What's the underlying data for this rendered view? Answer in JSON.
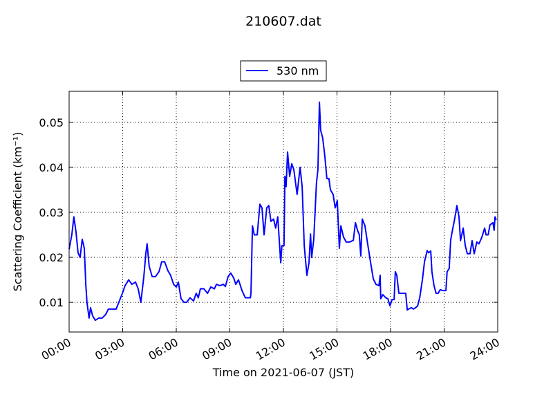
{
  "chart_data": {
    "type": "line",
    "title": "210607.dat",
    "xlabel": "Time on 2021-06-07 (JST)",
    "ylabel": "Scattering Coefficient (km⁻¹)",
    "x": [
      "00:00",
      "00:09",
      "00:16",
      "00:23",
      "00:30",
      "00:37",
      "00:44",
      "00:51",
      "00:56",
      "01:00",
      "01:07",
      "01:12",
      "01:19",
      "01:28",
      "01:40",
      "01:51",
      "02:03",
      "02:12",
      "02:24",
      "02:38",
      "02:47",
      "02:59",
      "03:08",
      "03:20",
      "03:31",
      "03:43",
      "03:52",
      "04:01",
      "04:11",
      "04:18",
      "04:22",
      "04:29",
      "04:39",
      "04:50",
      "05:02",
      "05:11",
      "05:21",
      "05:32",
      "05:41",
      "05:51",
      "06:00",
      "06:07",
      "06:16",
      "06:26",
      "06:35",
      "06:46",
      "06:58",
      "07:07",
      "07:14",
      "07:21",
      "07:33",
      "07:45",
      "07:56",
      "08:08",
      "08:15",
      "08:26",
      "08:38",
      "08:45",
      "08:54",
      "09:03",
      "09:13",
      "09:20",
      "09:29",
      "09:41",
      "09:52",
      "10:09",
      "10:11",
      "10:16",
      "10:22",
      "10:32",
      "10:41",
      "10:48",
      "10:55",
      "11:04",
      "11:11",
      "11:18",
      "11:27",
      "11:34",
      "11:41",
      "11:51",
      "11:55",
      "12:02",
      "12:05",
      "12:09",
      "12:14",
      "12:21",
      "12:28",
      "12:35",
      "12:46",
      "12:56",
      "13:03",
      "13:10",
      "13:19",
      "13:26",
      "13:31",
      "13:35",
      "13:42",
      "13:51",
      "13:56",
      "14:01",
      "14:05",
      "14:12",
      "14:19",
      "14:26",
      "14:33",
      "14:38",
      "14:47",
      "14:54",
      "15:01",
      "15:08",
      "15:13",
      "15:22",
      "15:31",
      "15:43",
      "15:55",
      "16:02",
      "16:09",
      "16:15",
      "16:20",
      "16:25",
      "16:34",
      "16:43",
      "16:53",
      "17:02",
      "17:11",
      "17:21",
      "17:25",
      "17:27",
      "17:34",
      "17:44",
      "17:51",
      "17:58",
      "18:05",
      "18:12",
      "18:16",
      "18:21",
      "18:28",
      "18:39",
      "18:51",
      "18:56",
      "19:03",
      "19:10",
      "19:17",
      "19:24",
      "19:31",
      "19:38",
      "19:47",
      "19:54",
      "20:03",
      "20:08",
      "20:15",
      "20:19",
      "20:26",
      "20:33",
      "20:40",
      "20:47",
      "20:56",
      "21:06",
      "21:10",
      "21:17",
      "21:22",
      "21:27",
      "21:34",
      "21:43",
      "21:50",
      "21:55",
      "22:04",
      "22:11",
      "22:18",
      "22:27",
      "22:34",
      "22:41",
      "22:50",
      "22:57",
      "23:07",
      "23:16",
      "23:21",
      "23:28",
      "23:34",
      "23:44",
      "23:48",
      "23:51",
      "23:55"
    ],
    "series": [
      {
        "name": "530 nm",
        "color": "#0000ff",
        "values": [
          0.0218,
          0.025,
          0.029,
          0.0257,
          0.021,
          0.02,
          0.024,
          0.022,
          0.014,
          0.01,
          0.0065,
          0.0088,
          0.007,
          0.006,
          0.0065,
          0.0065,
          0.0073,
          0.0085,
          0.0085,
          0.0085,
          0.01,
          0.012,
          0.0137,
          0.015,
          0.014,
          0.0145,
          0.013,
          0.01,
          0.0157,
          0.021,
          0.023,
          0.018,
          0.0157,
          0.0157,
          0.0168,
          0.019,
          0.019,
          0.017,
          0.016,
          0.014,
          0.0134,
          0.0145,
          0.0108,
          0.01,
          0.01,
          0.011,
          0.0103,
          0.012,
          0.011,
          0.013,
          0.013,
          0.012,
          0.0134,
          0.013,
          0.014,
          0.0137,
          0.014,
          0.0135,
          0.0157,
          0.0165,
          0.0154,
          0.014,
          0.015,
          0.0126,
          0.011,
          0.011,
          0.012,
          0.027,
          0.025,
          0.025,
          0.0318,
          0.031,
          0.025,
          0.031,
          0.0315,
          0.028,
          0.0285,
          0.0265,
          0.029,
          0.0188,
          0.0226,
          0.0226,
          0.038,
          0.0357,
          0.0434,
          0.038,
          0.0408,
          0.0395,
          0.034,
          0.04,
          0.0357,
          0.0226,
          0.016,
          0.0188,
          0.0252,
          0.02,
          0.024,
          0.0365,
          0.0395,
          0.0545,
          0.0483,
          0.0465,
          0.0426,
          0.0375,
          0.0375,
          0.035,
          0.034,
          0.031,
          0.0326,
          0.022,
          0.027,
          0.0245,
          0.0234,
          0.0234,
          0.0238,
          0.0277,
          0.026,
          0.025,
          0.0203,
          0.0285,
          0.027,
          0.023,
          0.0188,
          0.0152,
          0.014,
          0.0137,
          0.016,
          0.0108,
          0.0117,
          0.011,
          0.0108,
          0.0092,
          0.0106,
          0.0106,
          0.0168,
          0.016,
          0.012,
          0.012,
          0.012,
          0.0083,
          0.0086,
          0.0088,
          0.0085,
          0.0088,
          0.0092,
          0.011,
          0.015,
          0.019,
          0.0215,
          0.021,
          0.0214,
          0.0168,
          0.0137,
          0.012,
          0.012,
          0.0128,
          0.0126,
          0.0126,
          0.0168,
          0.0175,
          0.0238,
          0.0257,
          0.028,
          0.0315,
          0.029,
          0.0237,
          0.0265,
          0.0226,
          0.0208,
          0.0208,
          0.0237,
          0.0208,
          0.0234,
          0.023,
          0.0245,
          0.0265,
          0.025,
          0.025,
          0.0272,
          0.0277,
          0.026,
          0.029,
          0.0283
        ]
      }
    ],
    "xlim": [
      "00:00",
      "24:00"
    ],
    "xticks": [
      "00:00",
      "03:00",
      "06:00",
      "09:00",
      "12:00",
      "15:00",
      "18:00",
      "21:00",
      "24:00"
    ],
    "ylim": [
      0.0034,
      0.0569
    ],
    "yticks": [
      0.01,
      0.02,
      0.03,
      0.04,
      0.05
    ],
    "grid": true,
    "legend": "top"
  }
}
